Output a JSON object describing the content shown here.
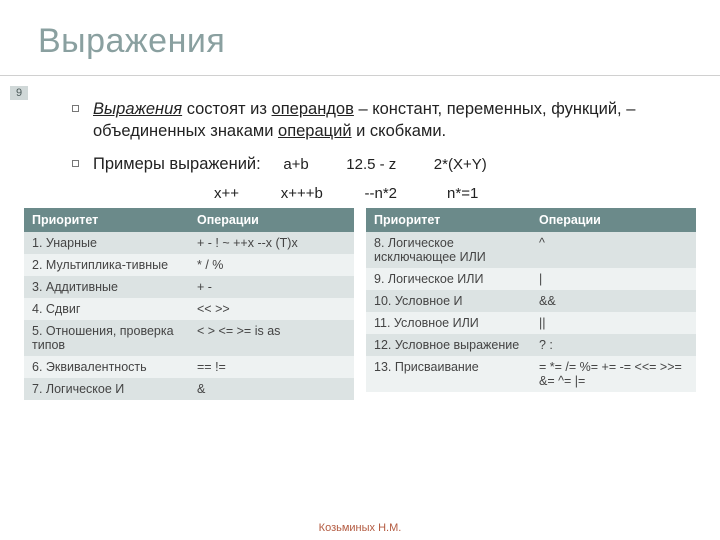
{
  "title": "Выражения",
  "page_number": "9",
  "colors": {
    "title": "#8aa0a0",
    "header_bg": "#6b8a8a",
    "row_odd": "#dce3e3",
    "row_even": "#eef2f2",
    "footer": "#b35a40"
  },
  "para1": {
    "w1": "Выражения",
    "w2": " состоят из ",
    "w3": "операндов",
    "w4": " – констант, переменных, функций, – объединенных знаками ",
    "w5": "операций",
    "w6": " и скобками."
  },
  "para2_label": "Примеры выражений:",
  "examples_line1": "a+b         12.5 - z         2*(X+Y)",
  "examples_line2": "x++          x+++b          --n*2            n*=1",
  "table_headers": {
    "c1": "Приоритет",
    "c2": "Операции"
  },
  "left_rows": [
    {
      "p": "1. Унарные",
      "o": "+ - ! ~ ++x --x (T)x"
    },
    {
      "p": "2. Мультиплика-тивные",
      "o": "* / %"
    },
    {
      "p": "3. Аддитивные",
      "o": "+ -"
    },
    {
      "p": "4. Сдвиг",
      "o": "<< >>"
    },
    {
      "p": "5. Отношения, проверка типов",
      "o": "< > <= >= is as"
    },
    {
      "p": "6. Эквивалентность",
      "o": "== !="
    },
    {
      "p": "7. Логическое И",
      "o": "&"
    }
  ],
  "right_rows": [
    {
      "p": "8. Логическое исключающее ИЛИ",
      "o": "^"
    },
    {
      "p": "9. Логическое ИЛИ",
      "o": "|"
    },
    {
      "p": "10. Условное И",
      "o": "&&"
    },
    {
      "p": "11. Условное ИЛИ",
      "o": "||"
    },
    {
      "p": "12.  Условное выражение",
      "o": "? :"
    },
    {
      "p": "13. Присваивание",
      "o": "= *= /= %= += -= <<= >>= &= ^= |="
    }
  ],
  "footer": "Козьминых Н.М."
}
